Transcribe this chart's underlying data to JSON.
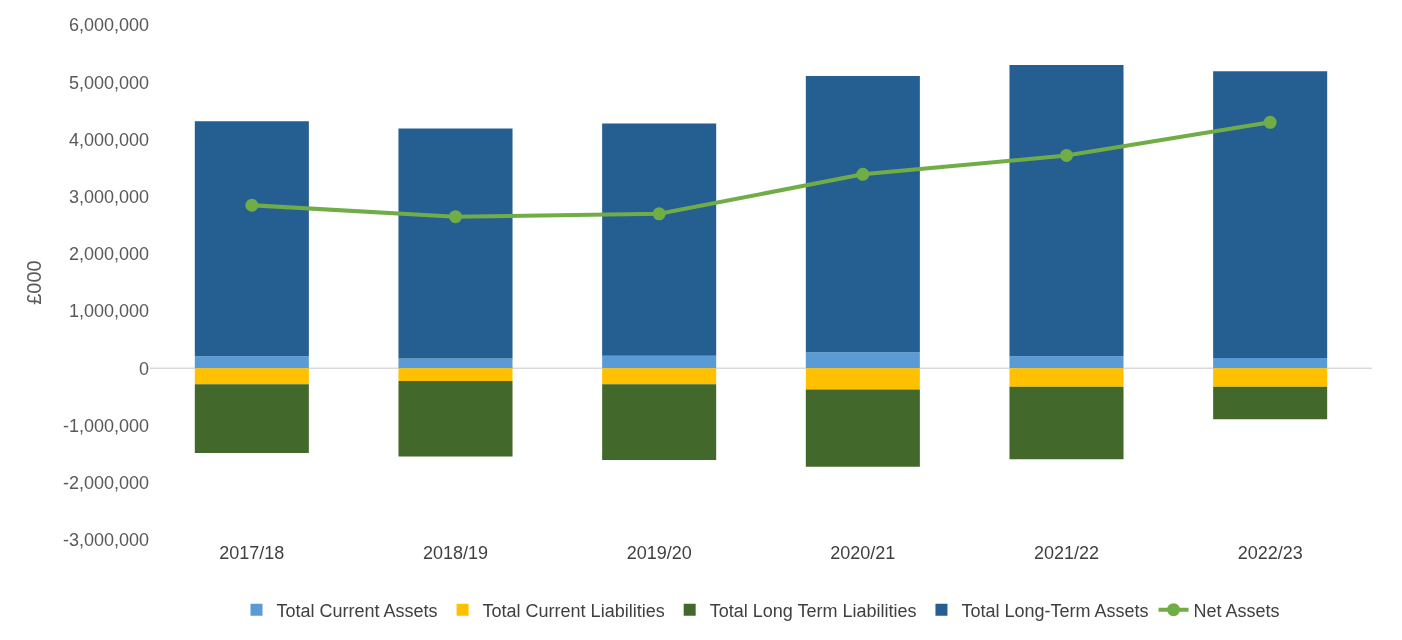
{
  "chart_data": {
    "type": "bar",
    "stacked": true,
    "ylabel": "£000",
    "categories": [
      "2017/18",
      "2018/19",
      "2019/20",
      "2020/21",
      "2021/22",
      "2022/23"
    ],
    "series": [
      {
        "name": "Total Current Assets",
        "color": "#5b9bd5",
        "values": [
          210000,
          170000,
          220000,
          280000,
          210000,
          180000
        ]
      },
      {
        "name": "Total Current Liabilities",
        "color": "#ffc000",
        "values": [
          -280000,
          -220000,
          -280000,
          -370000,
          -320000,
          -320000
        ]
      },
      {
        "name": "Total Long Term Liabilities",
        "color": "#43682b",
        "values": [
          -1200000,
          -1320000,
          -1320000,
          -1350000,
          -1270000,
          -570000
        ]
      },
      {
        "name": "Total Long-Term Assets",
        "color": "#255e91",
        "values": [
          4110000,
          4020000,
          4060000,
          4830000,
          5090000,
          5010000
        ]
      },
      {
        "name": "Net Assets",
        "type": "line",
        "color": "#70ad47",
        "marker": "circle",
        "line_style": "solid",
        "values": [
          2850000,
          2650000,
          2700000,
          3390000,
          3720000,
          4300000
        ]
      }
    ],
    "ylim": [
      -3000000,
      6000000
    ],
    "yticks": [
      {
        "value": -3000000,
        "label": "-3,000,000"
      },
      {
        "value": -2000000,
        "label": "-2,000,000"
      },
      {
        "value": -1000000,
        "label": "-1,000,000"
      },
      0,
      {
        "value": 1000000,
        "label": "1,000,000"
      },
      {
        "value": 2000000,
        "label": "2,000,000"
      },
      {
        "value": 3000000,
        "label": "3,000,000"
      },
      {
        "value": 4000000,
        "label": "4,000,000"
      },
      {
        "value": 5000000,
        "label": "5,000,000"
      },
      {
        "value": 6000000,
        "label": "6,000,000"
      }
    ],
    "ref_lines": [
      {
        "axis": "y",
        "value": 0,
        "color": "#d9d9d9"
      }
    ],
    "grid": false,
    "legend": "bottom"
  }
}
